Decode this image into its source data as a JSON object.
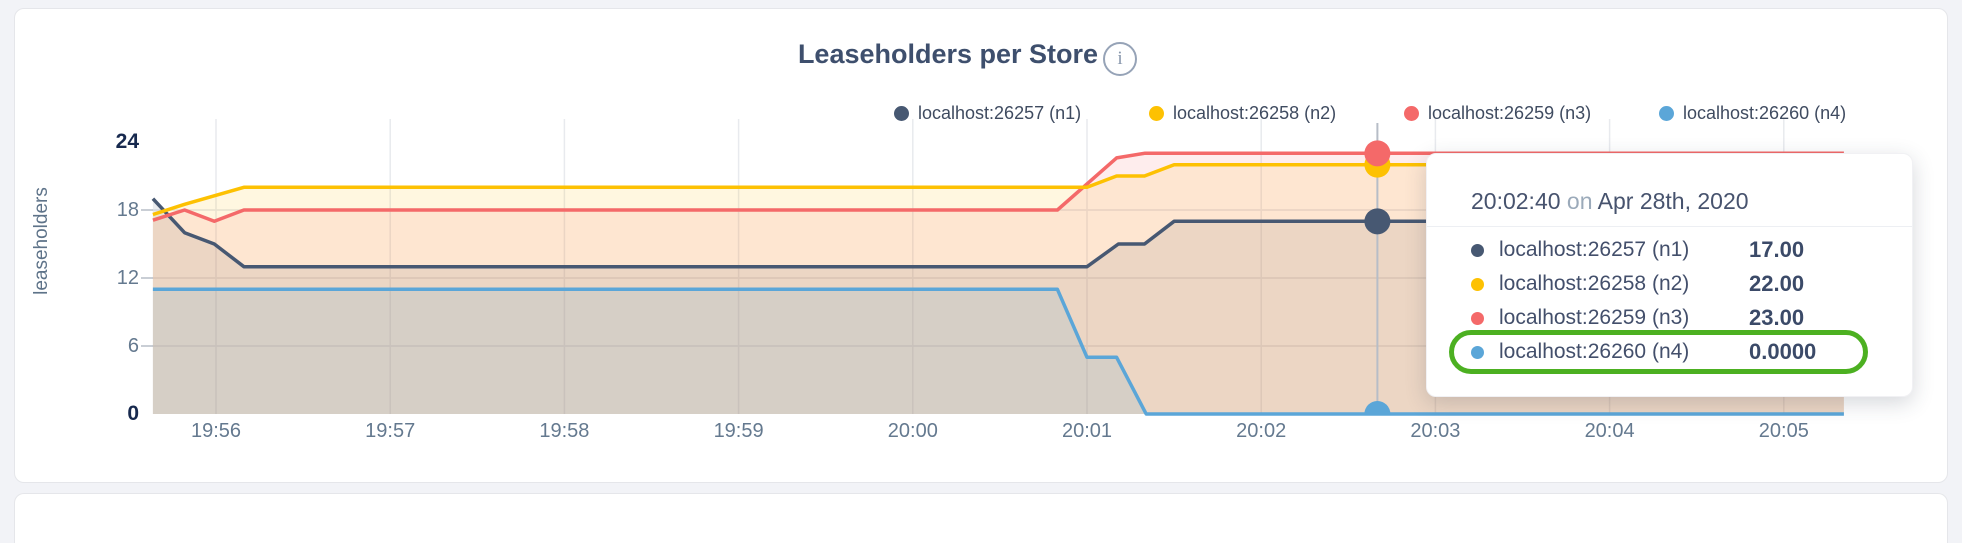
{
  "card": {
    "title": "Leaseholders per Store",
    "info_glyph": "i"
  },
  "colors": {
    "n1": "#475872",
    "n2": "#fdc102",
    "n3": "#f46969",
    "n4": "#5ba6d8",
    "highlight_green": "#4cb021",
    "grid_vertical": "#e8eaee",
    "grid_horizontal": "#e3e6ea",
    "hover_line": "#b7bdc7",
    "axis_text": "#64798f",
    "axis_text_bold": "#17294e"
  },
  "legend": [
    {
      "label": "localhost:26257 (n1)",
      "color": "#475872"
    },
    {
      "label": "localhost:26258 (n2)",
      "color": "#fdc102"
    },
    {
      "label": "localhost:26259 (n3)",
      "color": "#f46969"
    },
    {
      "label": "localhost:26260 (n4)",
      "color": "#5ba6d8"
    }
  ],
  "y_axis": {
    "title": "leaseholders",
    "ticks": [
      {
        "label": "24",
        "value": 24,
        "bold": true,
        "dash": false
      },
      {
        "label": "18",
        "value": 18,
        "bold": false,
        "dash": true
      },
      {
        "label": "12",
        "value": 12,
        "bold": false,
        "dash": true
      },
      {
        "label": "6",
        "value": 6,
        "bold": false,
        "dash": true
      },
      {
        "label": "0",
        "value": 0,
        "bold": true,
        "dash": false
      }
    ]
  },
  "x_axis": {
    "tick_labels": [
      "19:56",
      "19:57",
      "19:58",
      "19:59",
      "20:00",
      "20:01",
      "20:02",
      "20:03",
      "20:04",
      "20:05"
    ]
  },
  "chart_data": {
    "type": "area",
    "title": "Leaseholders per Store",
    "ylabel": "leaseholders",
    "ylim": [
      0,
      24
    ],
    "grid": true,
    "legend_position": "top-right",
    "x_unit": "minutes after 19:56",
    "x_tick_values": [
      0,
      1,
      2,
      3,
      4,
      5,
      6,
      7,
      8,
      9
    ],
    "x_tick_labels": [
      "19:56",
      "19:57",
      "19:58",
      "19:59",
      "20:00",
      "20:01",
      "20:02",
      "20:03",
      "20:04",
      "20:05"
    ],
    "x_range": [
      -0.362,
      9.345
    ],
    "series": [
      {
        "name": "localhost:26257 (n1)",
        "color": "#475872",
        "fill_opacity": 0.12,
        "points": [
          [
            -0.362,
            19
          ],
          [
            -0.18,
            16
          ],
          [
            -0.01,
            15
          ],
          [
            0.16,
            13
          ],
          [
            5.0,
            13
          ],
          [
            5.18,
            15
          ],
          [
            5.33,
            15
          ],
          [
            5.5,
            17
          ],
          [
            9.345,
            17
          ]
        ]
      },
      {
        "name": "localhost:26258 (n2)",
        "color": "#fdc102",
        "fill_opacity": 0.12,
        "points": [
          [
            -0.362,
            17.6
          ],
          [
            -0.18,
            18.5
          ],
          [
            0.16,
            20
          ],
          [
            5.0,
            20
          ],
          [
            5.17,
            21
          ],
          [
            5.33,
            21
          ],
          [
            5.5,
            22
          ],
          [
            9.345,
            22
          ]
        ]
      },
      {
        "name": "localhost:26259 (n3)",
        "color": "#f46969",
        "fill_opacity": 0.12,
        "points": [
          [
            -0.362,
            17.1
          ],
          [
            -0.18,
            18
          ],
          [
            -0.01,
            17
          ],
          [
            0.16,
            18
          ],
          [
            4.83,
            18
          ],
          [
            5.17,
            22.6
          ],
          [
            5.33,
            23
          ],
          [
            9.345,
            23
          ]
        ]
      },
      {
        "name": "localhost:26260 (n4)",
        "color": "#5ba6d8",
        "fill_opacity": 0.15,
        "points": [
          [
            -0.362,
            11
          ],
          [
            4.83,
            11
          ],
          [
            5.0,
            5
          ],
          [
            5.17,
            5
          ],
          [
            5.34,
            0
          ],
          [
            9.345,
            0
          ]
        ]
      }
    ],
    "hover": {
      "t": 6.667,
      "time_label": "20:02:40",
      "values": [
        17,
        22,
        23,
        0
      ]
    }
  },
  "tooltip": {
    "time": "20:02:40",
    "on_word": "on",
    "date": "Apr 28th, 2020",
    "rows": [
      {
        "name": "localhost:26257 (n1)",
        "value": "17.00",
        "color": "#475872",
        "highlighted": false
      },
      {
        "name": "localhost:26258 (n2)",
        "value": "22.00",
        "color": "#fdc102",
        "highlighted": false
      },
      {
        "name": "localhost:26259 (n3)",
        "value": "23.00",
        "color": "#f46969",
        "highlighted": false
      },
      {
        "name": "localhost:26260 (n4)",
        "value": "0.0000",
        "color": "#5ba6d8",
        "highlighted": true
      }
    ]
  }
}
